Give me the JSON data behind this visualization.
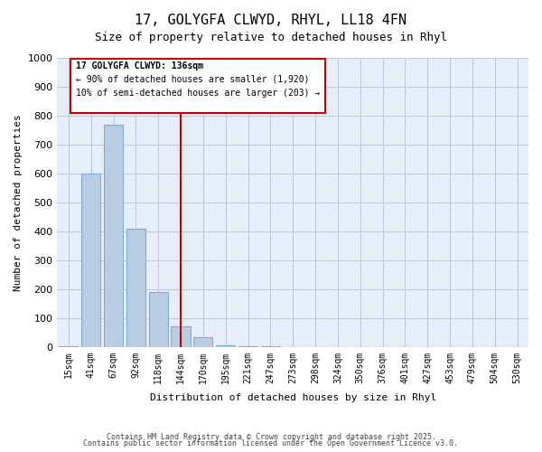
{
  "title": "17, GOLYGFA CLWYD, RHYL, LL18 4FN",
  "subtitle": "Size of property relative to detached houses in Rhyl",
  "xlabel": "Distribution of detached houses by size in Rhyl",
  "ylabel": "Number of detached properties",
  "bins": [
    "15sqm",
    "41sqm",
    "67sqm",
    "92sqm",
    "118sqm",
    "144sqm",
    "170sqm",
    "195sqm",
    "221sqm",
    "247sqm",
    "273sqm",
    "298sqm",
    "324sqm",
    "350sqm",
    "376sqm",
    "401sqm",
    "427sqm",
    "453sqm",
    "479sqm",
    "504sqm",
    "530sqm"
  ],
  "values": [
    2,
    600,
    770,
    410,
    190,
    70,
    35,
    5,
    2,
    2,
    0,
    0,
    0,
    0,
    0,
    0,
    0,
    0,
    0,
    0,
    0
  ],
  "bar_color": "#b8cce4",
  "bar_edge_color": "#7bafd4",
  "vline_x_index": 5,
  "vline_color": "#cc0000",
  "ylim": [
    0,
    1000
  ],
  "yticks": [
    0,
    100,
    200,
    300,
    400,
    500,
    600,
    700,
    800,
    900,
    1000
  ],
  "annotation_title": "17 GOLYGFA CLWYD: 136sqm",
  "annotation_line1": "← 90% of detached houses are smaller (1,920)",
  "annotation_line2": "10% of semi-detached houses are larger (203) →",
  "annotation_color": "#cc0000",
  "grid_color": "#c0c8d8",
  "bg_color": "#e8eef8",
  "footer_line1": "Contains HM Land Registry data © Crown copyright and database right 2025.",
  "footer_line2": "Contains public sector information licensed under the Open Government Licence v3.0."
}
